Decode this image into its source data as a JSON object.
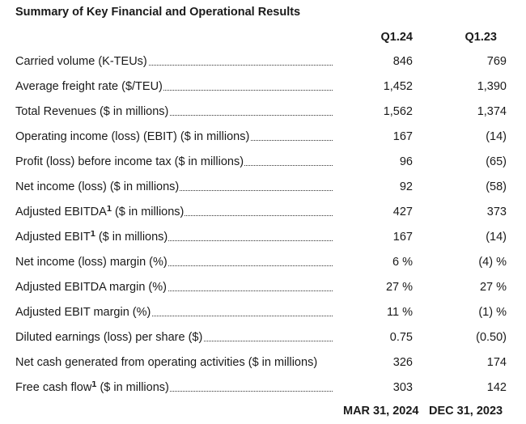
{
  "title": "Summary of Key Financial and Operational Results",
  "columns": [
    "Q1.24",
    "Q1.23"
  ],
  "rows": [
    {
      "label": "Carried volume (K-TEUs)",
      "sup": "",
      "rest": "",
      "v1": "846",
      "v2": "769",
      "dots": true
    },
    {
      "label": "Average freight rate ($/TEU)",
      "sup": "",
      "rest": "",
      "v1": "1,452",
      "v2": "1,390",
      "dots": true
    },
    {
      "label": "Total Revenues ($ in millions)",
      "sup": "",
      "rest": "",
      "v1": "1,562",
      "v2": "1,374",
      "dots": true
    },
    {
      "label": "Operating income (loss) (EBIT) ($ in millions)",
      "sup": "",
      "rest": "",
      "v1": "167",
      "v2": "(14)",
      "dots": true
    },
    {
      "label": "Profit (loss) before income tax ($ in millions)",
      "sup": "",
      "rest": "",
      "v1": "96",
      "v2": "(65)",
      "dots": true
    },
    {
      "label": "Net income (loss) ($ in millions)",
      "sup": "",
      "rest": "",
      "v1": "92",
      "v2": "(58)",
      "dots": true
    },
    {
      "label": "Adjusted EBITDA",
      "sup": "1",
      "rest": " ($ in millions)",
      "v1": "427",
      "v2": "373",
      "dots": true
    },
    {
      "label": "Adjusted EBIT",
      "sup": "1",
      "rest": " ($ in millions)",
      "v1": "167",
      "v2": "(14)",
      "dots": true
    },
    {
      "label": "Net income (loss) margin (%)",
      "sup": "",
      "rest": "",
      "v1": "6 %",
      "v2": "(4) %",
      "dots": true
    },
    {
      "label": "Adjusted EBITDA margin (%)",
      "sup": "",
      "rest": "",
      "v1": "27 %",
      "v2": "27 %",
      "dots": true
    },
    {
      "label": "Adjusted EBIT margin (%)",
      "sup": "",
      "rest": "",
      "v1": "11 %",
      "v2": "(1) %",
      "dots": true
    },
    {
      "label": "Diluted earnings (loss) per share ($)",
      "sup": "",
      "rest": "",
      "v1": "0.75",
      "v2": "(0.50)",
      "dots": true
    },
    {
      "label": "Net cash generated from operating activities ($ in millions)",
      "sup": "",
      "rest": "",
      "v1": "326",
      "v2": "174",
      "dots": false
    },
    {
      "label": "Free cash flow",
      "sup": "1",
      "rest": " ($ in millions)",
      "v1": "303",
      "v2": "142",
      "dots": true
    }
  ],
  "footer": [
    "MAR 31, 2024",
    "DEC 31, 2023"
  ]
}
